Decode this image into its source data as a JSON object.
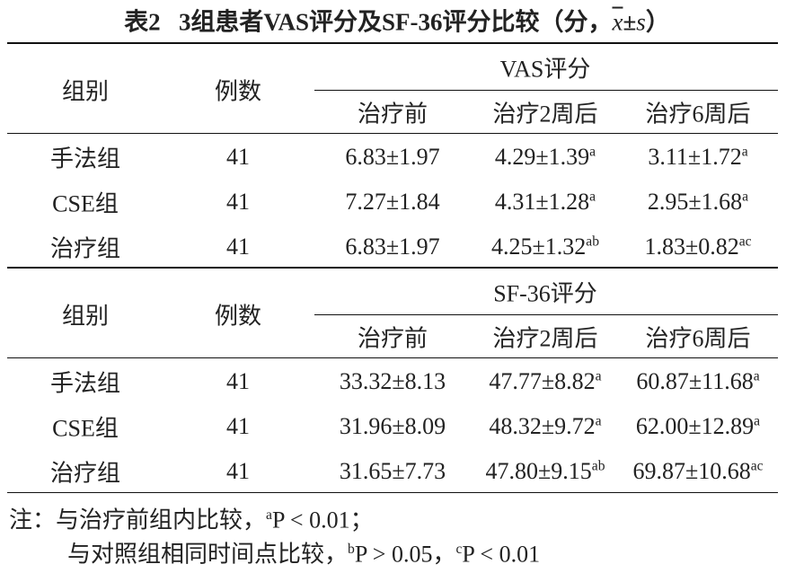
{
  "title": {
    "label": "表2",
    "text": "3组患者VAS评分及SF-36评分比较（分，",
    "mean": "x",
    "pm": "±",
    "sd": "s",
    "close": "）"
  },
  "sections": [
    {
      "group_label": "组别",
      "n_label": "例数",
      "measure": "VAS评分",
      "timepoints": [
        "治疗前",
        "治疗2周后",
        "治疗6周后"
      ],
      "rows": [
        {
          "group": "手法组",
          "n": "41",
          "values": [
            {
              "text": "6.83±1.97"
            },
            {
              "text": "4.29±1.39",
              "sup": "a"
            },
            {
              "text": "3.11±1.72",
              "sup": "a"
            }
          ]
        },
        {
          "group": "CSE组",
          "n": "41",
          "values": [
            {
              "text": "7.27±1.84"
            },
            {
              "text": "4.31±1.28",
              "sup": "a"
            },
            {
              "text": "2.95±1.68",
              "sup": "a"
            }
          ]
        },
        {
          "group": "治疗组",
          "n": "41",
          "values": [
            {
              "text": "6.83±1.97"
            },
            {
              "text": "4.25±1.32",
              "sup": "ab"
            },
            {
              "text": "1.83±0.82",
              "sup": "ac"
            }
          ]
        }
      ]
    },
    {
      "group_label": "组别",
      "n_label": "例数",
      "measure": "SF-36评分",
      "timepoints": [
        "治疗前",
        "治疗2周后",
        "治疗6周后"
      ],
      "rows": [
        {
          "group": "手法组",
          "n": "41",
          "values": [
            {
              "text": "33.32±8.13"
            },
            {
              "text": "47.77±8.82",
              "sup": "a"
            },
            {
              "text": "60.87±11.68",
              "sup": "a"
            }
          ]
        },
        {
          "group": "CSE组",
          "n": "41",
          "values": [
            {
              "text": "31.96±8.09"
            },
            {
              "text": "48.32±9.72",
              "sup": "a"
            },
            {
              "text": "62.00±12.89",
              "sup": "a"
            }
          ]
        },
        {
          "group": "治疗组",
          "n": "41",
          "values": [
            {
              "text": "31.65±7.73"
            },
            {
              "text": "47.80±9.15",
              "sup": "ab"
            },
            {
              "text": "69.87±10.68",
              "sup": "ac"
            }
          ]
        }
      ]
    }
  ],
  "notes": [
    [
      "注：与治疗前组内比较，",
      {
        "sup": "a"
      },
      "P < 0.01；"
    ],
    [
      "与对照组相同时间点比较，",
      {
        "sup": "b"
      },
      "P > 0.05，",
      {
        "sup": "c"
      },
      "P < 0.01"
    ]
  ]
}
